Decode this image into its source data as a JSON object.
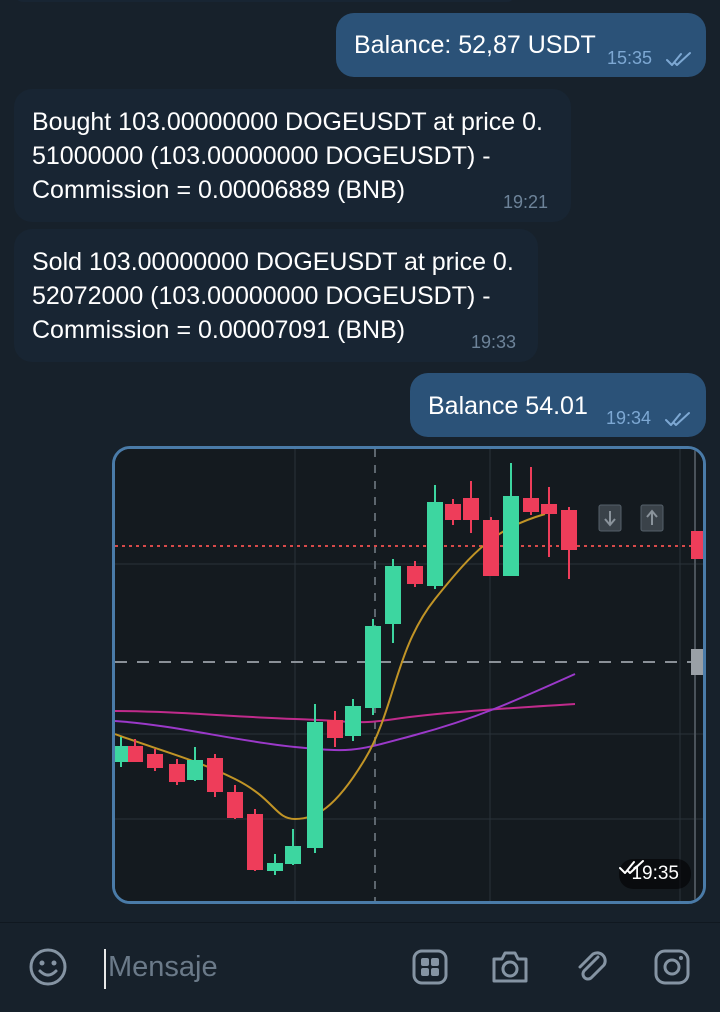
{
  "messages": [
    {
      "text": "Balance: 52,87 USDT",
      "time": "15:35"
    },
    {
      "text": "Bought 103.00000000 DOGEUSDT at price 0.\n51000000 (103.00000000 DOGEUSDT) -\nCommission = 0.00006889 (BNB)",
      "time": "19:21"
    },
    {
      "text": "Sold 103.00000000 DOGEUSDT at price 0.\n52072000 (103.00000000 DOGEUSDT) -\nCommission = 0.00007091 (BNB)",
      "time": "19:33"
    },
    {
      "text": "Balance 54.01",
      "time": "19:34"
    }
  ],
  "photo": {
    "time": "19:35"
  },
  "composer": {
    "placeholder": "Mensaje"
  },
  "colors": {
    "bg": "#17212b",
    "incoming": "#182533",
    "outgoing": "#2b5278",
    "accent": "#4a7ba8",
    "up": "#3dd6a0",
    "down": "#ee3d5a"
  },
  "icons": [
    "emoji-icon",
    "sticker-icon",
    "camera-icon",
    "attach-icon",
    "instagram-icon",
    "double-check-icon"
  ]
}
